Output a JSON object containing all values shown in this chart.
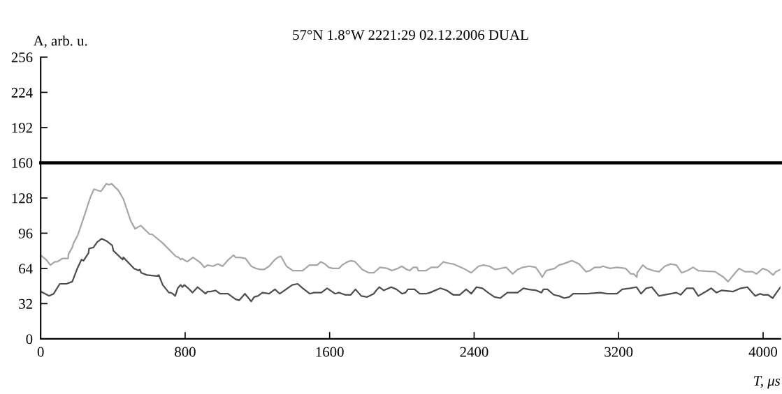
{
  "chart_data": {
    "type": "line",
    "title": "57°N 1.8°W 2221:29 02.12.2006 DUAL",
    "xlabel": "T, μs",
    "ylabel": "A, arb. u.",
    "xlim": [
      0,
      4096
    ],
    "xticks": [
      0,
      800,
      1600,
      2400,
      3200,
      4000
    ],
    "ylim": [
      0,
      256
    ],
    "yticks": [
      0,
      32,
      64,
      96,
      128,
      160,
      192,
      224,
      256
    ],
    "grid": false,
    "line_style": "solid",
    "marker": "none",
    "ref_lines": [
      {
        "axis": "y",
        "value": 160,
        "color": "#000000",
        "line_style": "solid"
      }
    ],
    "series": [
      {
        "color": "#a6a6a6",
        "x": [
          0,
          30,
          54,
          79,
          92,
          120,
          152,
          154,
          175,
          182,
          205,
          244,
          276,
          295,
          334,
          364,
          378,
          392,
          430,
          458,
          499,
          523,
          554,
          604,
          617,
          676,
          748,
          764,
          775,
          783,
          811,
          844,
          886,
          906,
          924,
          954,
          982,
          1007,
          1040,
          1068,
          1079,
          1103,
          1134,
          1166,
          1192,
          1217,
          1237,
          1265,
          1297,
          1313,
          1330,
          1361,
          1396,
          1451,
          1488,
          1531,
          1551,
          1574,
          1595,
          1617,
          1651,
          1669,
          1699,
          1720,
          1741,
          1781,
          1817,
          1844,
          1879,
          1920,
          1945,
          1977,
          1999,
          2027,
          2044,
          2063,
          2084,
          2091,
          2134,
          2163,
          2199,
          2230,
          2249,
          2284,
          2341,
          2384,
          2424,
          2453,
          2484,
          2516,
          2577,
          2613,
          2641,
          2670,
          2706,
          2741,
          2767,
          2777,
          2799,
          2846,
          2870,
          2891,
          2941,
          2981,
          3020,
          3041,
          3067,
          3099,
          3113,
          3153,
          3191,
          3239,
          3267,
          3284,
          3301,
          3303,
          3334,
          3356,
          3391,
          3424,
          3456,
          3487,
          3520,
          3549,
          3581,
          3613,
          3641,
          3734,
          3781,
          3806,
          3841,
          3867,
          3899,
          3941,
          3963,
          3999,
          4027,
          4056,
          4070,
          4096
        ],
        "values": [
          76,
          72,
          67,
          70,
          70,
          73,
          73,
          77,
          83,
          87,
          94,
          113,
          129,
          136,
          134,
          141,
          140,
          141,
          135,
          127,
          107,
          100,
          103,
          95,
          95,
          87,
          75,
          74,
          72,
          73,
          70,
          74,
          69,
          65,
          67,
          66,
          68,
          66,
          72,
          76,
          74,
          74,
          73,
          66,
          64,
          63,
          63,
          66,
          72,
          74,
          75,
          66,
          62,
          62,
          67,
          67,
          70,
          68,
          65,
          64,
          64,
          67,
          70,
          71,
          70,
          63,
          60,
          60,
          65,
          64,
          62,
          64,
          66,
          63,
          62,
          65,
          65,
          62,
          62,
          65,
          65,
          70,
          69,
          68,
          64,
          60,
          66,
          67,
          66,
          63,
          65,
          59,
          63,
          65,
          66,
          65,
          59,
          56,
          62,
          64,
          67,
          68,
          71,
          68,
          61,
          62,
          65,
          65,
          66,
          64,
          65,
          64,
          59,
          59,
          56,
          60,
          67,
          64,
          62,
          61,
          66,
          68,
          67,
          60,
          62,
          65,
          62,
          61,
          56,
          52,
          59,
          64,
          61,
          61,
          59,
          64,
          62,
          58,
          61,
          63
        ]
      },
      {
        "color": "#4d4d4d",
        "x": [
          0,
          47,
          72,
          106,
          143,
          175,
          203,
          226,
          237,
          265,
          268,
          292,
          313,
          337,
          364,
          396,
          403,
          454,
          458,
          517,
          543,
          549,
          557,
          589,
          644,
          654,
          676,
          710,
          720,
          731,
          745,
          759,
          775,
          785,
          796,
          817,
          841,
          869,
          913,
          924,
          941,
          968,
          993,
          1037,
          1079,
          1099,
          1131,
          1166,
          1182,
          1203,
          1228,
          1265,
          1297,
          1324,
          1341,
          1393,
          1423,
          1451,
          1490,
          1513,
          1554,
          1586,
          1630,
          1651,
          1686,
          1717,
          1743,
          1775,
          1807,
          1844,
          1858,
          1875,
          1899,
          1941,
          1970,
          2001,
          2020,
          2034,
          2070,
          2099,
          2134,
          2156,
          2213,
          2249,
          2284,
          2320,
          2356,
          2384,
          2413,
          2446,
          2477,
          2513,
          2544,
          2584,
          2641,
          2673,
          2699,
          2744,
          2773,
          2784,
          2806,
          2841,
          2870,
          2899,
          2927,
          2949,
          3027,
          3099,
          3134,
          3191,
          3220,
          3263,
          3299,
          3324,
          3353,
          3384,
          3423,
          3520,
          3544,
          3577,
          3613,
          3641,
          3684,
          3713,
          3741,
          3770,
          3834,
          3877,
          3913,
          3956,
          3984,
          3999,
          4027,
          4053,
          4096
        ],
        "values": [
          43,
          39,
          41,
          50,
          50,
          52,
          64,
          72,
          71,
          78,
          82,
          83,
          88,
          91,
          89,
          85,
          80,
          72,
          74,
          64,
          62,
          63,
          60,
          58,
          57,
          58,
          49,
          42,
          42,
          41,
          39,
          46,
          49,
          47,
          49,
          46,
          42,
          47,
          41,
          43,
          43,
          44,
          41,
          41,
          36,
          35,
          41,
          34,
          38,
          39,
          42,
          41,
          45,
          41,
          43,
          49,
          50,
          46,
          41,
          42,
          42,
          46,
          41,
          42,
          40,
          40,
          45,
          39,
          38,
          41,
          44,
          47,
          44,
          47,
          45,
          41,
          42,
          45,
          45,
          41,
          41,
          42,
          46,
          44,
          40,
          40,
          45,
          41,
          47,
          46,
          42,
          38,
          37,
          42,
          42,
          46,
          45,
          44,
          42,
          45,
          45,
          40,
          39,
          37,
          38,
          41,
          41,
          42,
          41,
          41,
          45,
          46,
          47,
          41,
          46,
          47,
          39,
          42,
          40,
          46,
          46,
          39,
          43,
          46,
          42,
          44,
          43,
          46,
          47,
          39,
          41,
          40,
          40,
          37,
          47
        ]
      }
    ]
  }
}
